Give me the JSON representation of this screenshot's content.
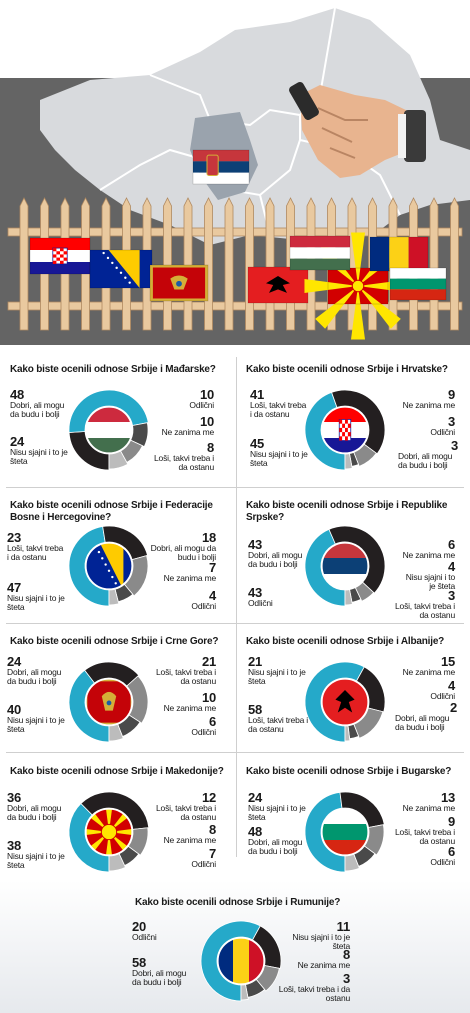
{
  "chart_data": [
    {
      "type": "pie",
      "title": "Kako biste ocenili odnose Srbije i Mađarske?",
      "flag": "hungary",
      "slices": [
        {
          "label": "Dobri, ali mogu da budu i bolji",
          "value": 48,
          "color": "#25a9c9"
        },
        {
          "label": "Odlični",
          "value": 10,
          "color": "#4a4a4a"
        },
        {
          "label": "Ne zanima me",
          "value": 10,
          "color": "#8a8a8a"
        },
        {
          "label": "Loši, takvi treba i da ostanu",
          "value": 8,
          "color": "#bcbcbc"
        },
        {
          "label": "Nisu sjajni i to je šteta",
          "value": 24,
          "color": "#231f20"
        }
      ]
    },
    {
      "type": "pie",
      "title": "Kako biste ocenili odnose Srbije i Hrvatske?",
      "flag": "croatia",
      "slices": [
        {
          "label": "Loši, takvi treba i da ostanu",
          "value": 41,
          "color": "#231f20"
        },
        {
          "label": "Ne zanima me",
          "value": 9,
          "color": "#8a8a8a"
        },
        {
          "label": "Odlični",
          "value": 3,
          "color": "#4a4a4a"
        },
        {
          "label": "Dobri, ali mogu da budu i bolji",
          "value": 3,
          "color": "#bcbcbc"
        },
        {
          "label": "Nisu sjajni i to je šteta",
          "value": 45,
          "color": "#25a9c9"
        }
      ]
    },
    {
      "type": "pie",
      "title": "Kako biste ocenili odnose Srbije i Federacije Bosne i Hercegovine?",
      "flag": "bosnia",
      "slices": [
        {
          "label": "Loši, takvi treba i da ostanu",
          "value": 23,
          "color": "#231f20"
        },
        {
          "label": "Dobri, ali mogu da budu i bolji",
          "value": 18,
          "color": "#8a8a8a"
        },
        {
          "label": "Ne zanima me",
          "value": 7,
          "color": "#4a4a4a"
        },
        {
          "label": "Odlični",
          "value": 4,
          "color": "#bcbcbc"
        },
        {
          "label": "Nisu sjajni i to je šteta",
          "value": 47,
          "color": "#25a9c9"
        }
      ]
    },
    {
      "type": "pie",
      "title": "Kako biste ocenili odnose Srbije i Republike Srpske?",
      "flag": "srpska",
      "slices": [
        {
          "label": "Dobri, ali mogu da budu i bolji",
          "value": 43,
          "color": "#231f20"
        },
        {
          "label": "Ne zanima me",
          "value": 6,
          "color": "#8a8a8a"
        },
        {
          "label": "Nisu sjajni i to je šteta",
          "value": 4,
          "color": "#4a4a4a"
        },
        {
          "label": "Loši, takvi treba i da ostanu",
          "value": 3,
          "color": "#bcbcbc"
        },
        {
          "label": "Odlični",
          "value": 43,
          "color": "#25a9c9"
        }
      ]
    },
    {
      "type": "pie",
      "title": "Kako biste ocenili odnose Srbije i Crne Gore?",
      "flag": "montenegro",
      "slices": [
        {
          "label": "Dobri, ali mogu da budu i bolji",
          "value": 24,
          "color": "#231f20"
        },
        {
          "label": "Loši, takvi treba i da ostanu",
          "value": 21,
          "color": "#8a8a8a"
        },
        {
          "label": "Ne zanima me",
          "value": 10,
          "color": "#4a4a4a"
        },
        {
          "label": "Odlični",
          "value": 6,
          "color": "#bcbcbc"
        },
        {
          "label": "Nisu sjajni i to je šteta",
          "value": 40,
          "color": "#25a9c9"
        }
      ]
    },
    {
      "type": "pie",
      "title": "Kako biste ocenili odnose Srbije i Albanije?",
      "flag": "albania",
      "slices": [
        {
          "label": "Nisu sjajni i to je šteta",
          "value": 21,
          "color": "#231f20"
        },
        {
          "label": "Ne zanima me",
          "value": 15,
          "color": "#8a8a8a"
        },
        {
          "label": "Odlični",
          "value": 4,
          "color": "#4a4a4a"
        },
        {
          "label": "Dobri, ali mogu da budu i bolji",
          "value": 2,
          "color": "#bcbcbc"
        },
        {
          "label": "Loši, takvi treba i da ostanu",
          "value": 58,
          "color": "#25a9c9"
        }
      ]
    },
    {
      "type": "pie",
      "title": "Kako biste ocenili odnose Srbije i Makedonije?",
      "flag": "macedonia",
      "slices": [
        {
          "label": "Dobri, ali mogu da budu i bolji",
          "value": 36,
          "color": "#231f20"
        },
        {
          "label": "Loši, takvi treba i da ostanu",
          "value": 12,
          "color": "#8a8a8a"
        },
        {
          "label": "Ne zanima me",
          "value": 8,
          "color": "#4a4a4a"
        },
        {
          "label": "Odlični",
          "value": 7,
          "color": "#bcbcbc"
        },
        {
          "label": "Nisu sjajni i to je šteta",
          "value": 38,
          "color": "#25a9c9"
        }
      ]
    },
    {
      "type": "pie",
      "title": "Kako biste ocenili odnose Srbije i Bugarske?",
      "flag": "bulgaria",
      "slices": [
        {
          "label": "Nisu sjajni i to je šteta",
          "value": 24,
          "color": "#231f20"
        },
        {
          "label": "Ne zanima me",
          "value": 13,
          "color": "#8a8a8a"
        },
        {
          "label": "Loši, takvi treba i da ostanu",
          "value": 9,
          "color": "#4a4a4a"
        },
        {
          "label": "Odlični",
          "value": 6,
          "color": "#bcbcbc"
        },
        {
          "label": "Dobri, ali mogu da budu i bolji",
          "value": 48,
          "color": "#25a9c9"
        }
      ]
    },
    {
      "type": "pie",
      "title": "Kako biste ocenili odnose Srbije i Rumunije?",
      "flag": "romania",
      "slices": [
        {
          "label": "Odlični",
          "value": 20,
          "color": "#231f20"
        },
        {
          "label": "Nisu sjajni i to je šteta",
          "value": 11,
          "color": "#8a8a8a"
        },
        {
          "label": "Ne zanima me",
          "value": 8,
          "color": "#4a4a4a"
        },
        {
          "label": "Loši, takvi treba i da ostanu",
          "value": 3,
          "color": "#bcbcbc"
        },
        {
          "label": "Dobri, ali mogu da budu i bolji",
          "value": 58,
          "color": "#25a9c9"
        }
      ]
    }
  ],
  "hero": {
    "flags": [
      "serbia",
      "croatia",
      "bosnia",
      "montenegro",
      "albania",
      "macedonia",
      "hungary",
      "romania",
      "bulgaria"
    ],
    "icons": [
      "balkan-map-icon",
      "handshake-icon",
      "fence-icon"
    ]
  },
  "colors": {
    "accent": "#25a9c9",
    "dark": "#231f20",
    "grey": "#8a8a8a",
    "mid": "#4a4a4a",
    "light": "#bcbcbc",
    "fence": "#e9c99f"
  }
}
